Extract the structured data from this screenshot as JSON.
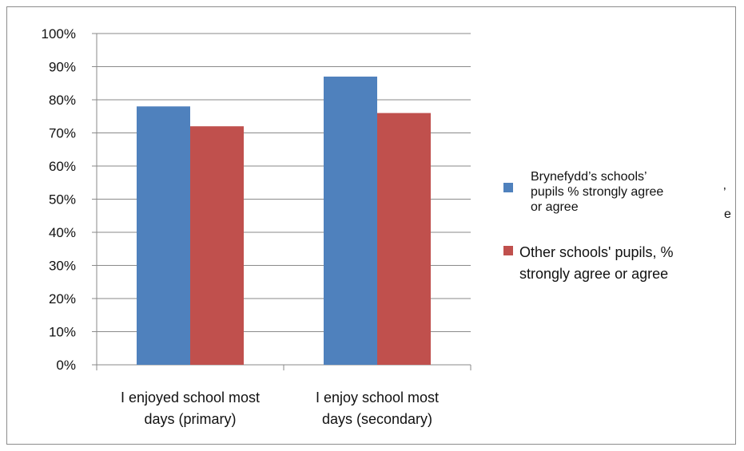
{
  "chart_data": {
    "type": "bar",
    "categories": [
      [
        "I enjoyed school most",
        "days (primary)"
      ],
      [
        "I enjoy school most",
        "days (secondary)"
      ]
    ],
    "series": [
      {
        "name": "Brynefydd’s schools’ pupils % strongly agree or agree",
        "name_lines": [
          "Brynefydd’s schools’",
          "pupils % strongly agree",
          "or agree"
        ],
        "color": "#4f81bd",
        "values": [
          78,
          87
        ]
      },
      {
        "name": "Other schools' pupils, % strongly agree or agree",
        "name_lines": [
          "Other schools' pupils, %",
          "strongly agree or agree"
        ],
        "color": "#c0504d",
        "values": [
          72,
          76
        ]
      }
    ],
    "yticks": [
      "0%",
      "10%",
      "20%",
      "30%",
      "40%",
      "50%",
      "60%",
      "70%",
      "80%",
      "90%",
      "100%"
    ],
    "ylim": [
      0,
      100
    ],
    "grid": true,
    "legend_position": "right",
    "title": "",
    "xlabel": "",
    "ylabel": "",
    "legend_remnants": [
      "’",
      "e"
    ]
  }
}
